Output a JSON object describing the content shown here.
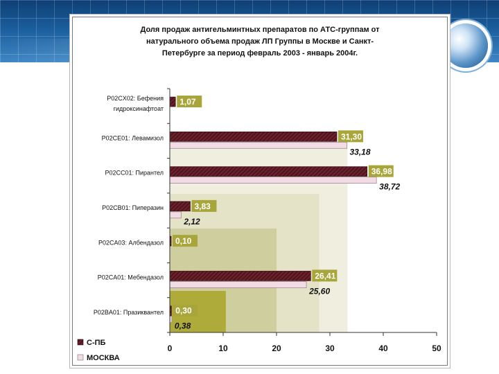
{
  "slide": {
    "theme_colors": {
      "band_dark": "#0e3f74",
      "band_light": "#3e86c4"
    }
  },
  "chart_data": {
    "type": "bar",
    "orientation": "horizontal",
    "title_lines": [
      "Доля продаж антигельминтных препаратов по АТС-группам от",
      "натурального объема продаж ЛП Группы в Москве и Санкт-",
      "Петербурге за период февраль 2003 - январь 2004г."
    ],
    "categories": [
      [
        "P02CX02: Бефения",
        "гидроксинафтоат"
      ],
      [
        "P02CE01: Левамизол"
      ],
      [
        "P02CC01: Пирантел"
      ],
      [
        "P02CB01: Пиперазин"
      ],
      [
        "P02CA03: Албендазол"
      ],
      [
        "P02CA01: Мебендазол"
      ],
      [
        "P02BA01: Празиквантел"
      ]
    ],
    "series": [
      {
        "name": "С-ПБ",
        "values": [
          1.07,
          31.3,
          36.98,
          3.83,
          0.1,
          26.41,
          0.3
        ],
        "labels": [
          "1,07",
          "31,30",
          "36,98",
          "3,83",
          "0,10",
          "26,41",
          "0,30"
        ],
        "color": "#6b1f2a",
        "label_bg": "#a8a63a"
      },
      {
        "name": "МОСКВА",
        "values": [
          null,
          33.18,
          38.72,
          2.12,
          null,
          25.6,
          0.38
        ],
        "labels": [
          "",
          "33,18",
          "38,72",
          "2,12",
          "",
          "25,60",
          "0,38"
        ],
        "color": "#f2dbe4"
      }
    ],
    "xlim": [
      0,
      50
    ],
    "xticks": [
      0,
      10,
      20,
      30,
      40,
      50
    ],
    "xtick_labels": [
      "0",
      "10",
      "20",
      "30",
      "40",
      "50"
    ],
    "grid": false,
    "legend_position": "bottom-left",
    "background_bands": [
      {
        "x_max": 33.3,
        "color": "#f0efdf"
      },
      {
        "x_max": 28.0,
        "color": "#e4e3c8"
      },
      {
        "x_max": 20.0,
        "color": "#cfce9f"
      },
      {
        "x_max": 10.5,
        "color": "#aeab3a"
      }
    ]
  }
}
